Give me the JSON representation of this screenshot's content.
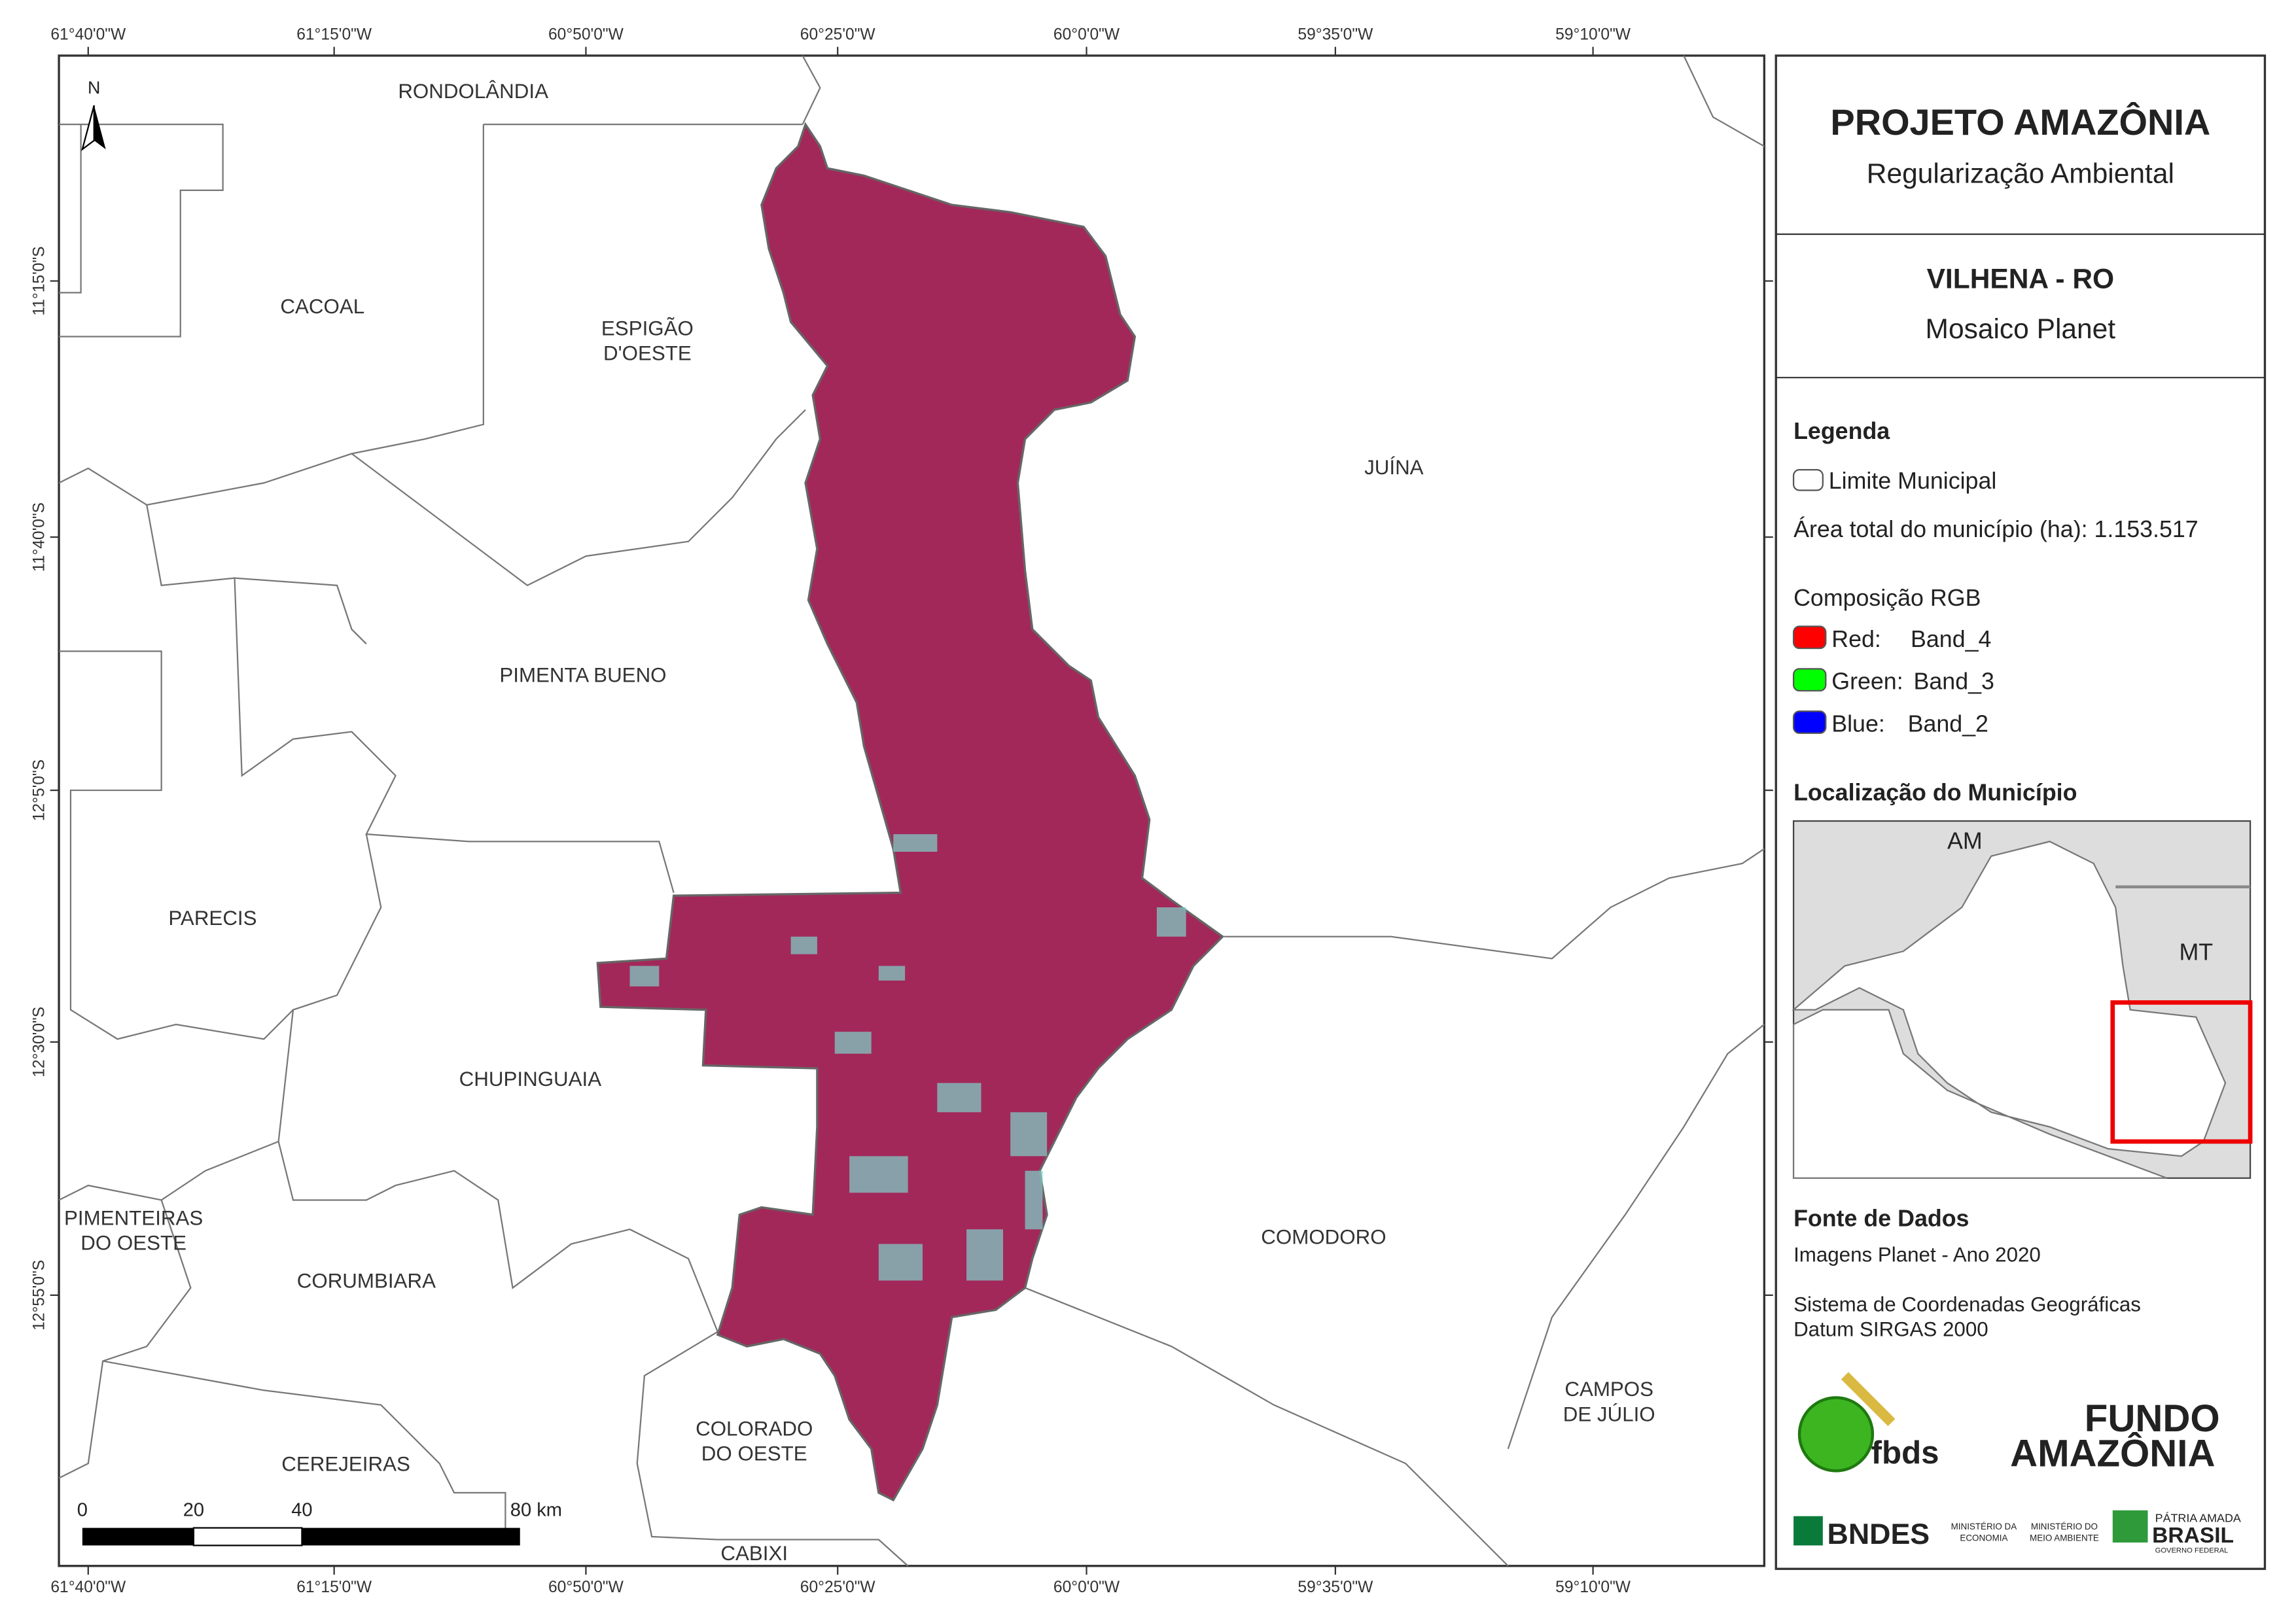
{
  "coordinates": {
    "longitudes": [
      "61°40'0\"W",
      "61°15'0\"W",
      "60°50'0\"W",
      "60°25'0\"W",
      "60°0'0\"W",
      "59°35'0\"W",
      "59°10'0\"W"
    ],
    "latitudes": [
      "11°15'0\"S",
      "11°40'0\"S",
      "12°5'0\"S",
      "12°30'0\"S",
      "12°55'0\"S"
    ]
  },
  "map": {
    "north": "N",
    "labels": [
      [
        "RONDOLÂNDIA"
      ],
      [
        "CACOAL"
      ],
      [
        "ESPIGÃO",
        "D'OESTE"
      ],
      [
        "JUÍNA"
      ],
      [
        "PIMENTA BUENO"
      ],
      [
        "PARECIS"
      ],
      [
        "CHUPINGUAIA"
      ],
      [
        "PIMENTEIRAS",
        "DO OESTE"
      ],
      [
        "CORUMBIARA"
      ],
      [
        "COMODORO"
      ],
      [
        "CEREJEIRAS"
      ],
      [
        "COLORADO",
        "DO OESTE"
      ],
      [
        "CAMPOS",
        "DE JÚLIO"
      ],
      [
        "CABIXI"
      ]
    ],
    "scale": [
      "0",
      "20",
      "40",
      "80 km"
    ]
  },
  "panel": {
    "title": "PROJETO AMAZÔNIA",
    "subtitle": "Regularização Ambiental",
    "place": "VILHENA - RO",
    "product": "Mosaico Planet",
    "legend": {
      "title": "Legenda",
      "boundary": "Limite Municipal",
      "area": "Área total do município (ha): 1.153.517",
      "composition": "Composição RGB",
      "bands": [
        [
          "Red:",
          "Band_4"
        ],
        [
          "Green:",
          "Band_3"
        ],
        [
          "Blue:",
          "Band_2"
        ]
      ]
    },
    "location": {
      "title": "Localização do Município",
      "labels": [
        "AM",
        "MT"
      ]
    },
    "sources": {
      "title": "Fonte de Dados",
      "lines": [
        "Imagens Planet - Ano 2020",
        "Sistema de Coordenadas Geográficas",
        "Datum SIRGAS 2000"
      ]
    },
    "logos": [
      "fbds",
      "FUNDO",
      "AMAZÔNIA",
      "BNDES",
      "MINISTÉRIO DA",
      "ECONOMIA",
      "MINISTÉRIO DO",
      "MEIO AMBIENTE",
      "PÁTRIA AMADA",
      "BRASIL",
      "GOVERNO FEDERAL"
    ]
  }
}
